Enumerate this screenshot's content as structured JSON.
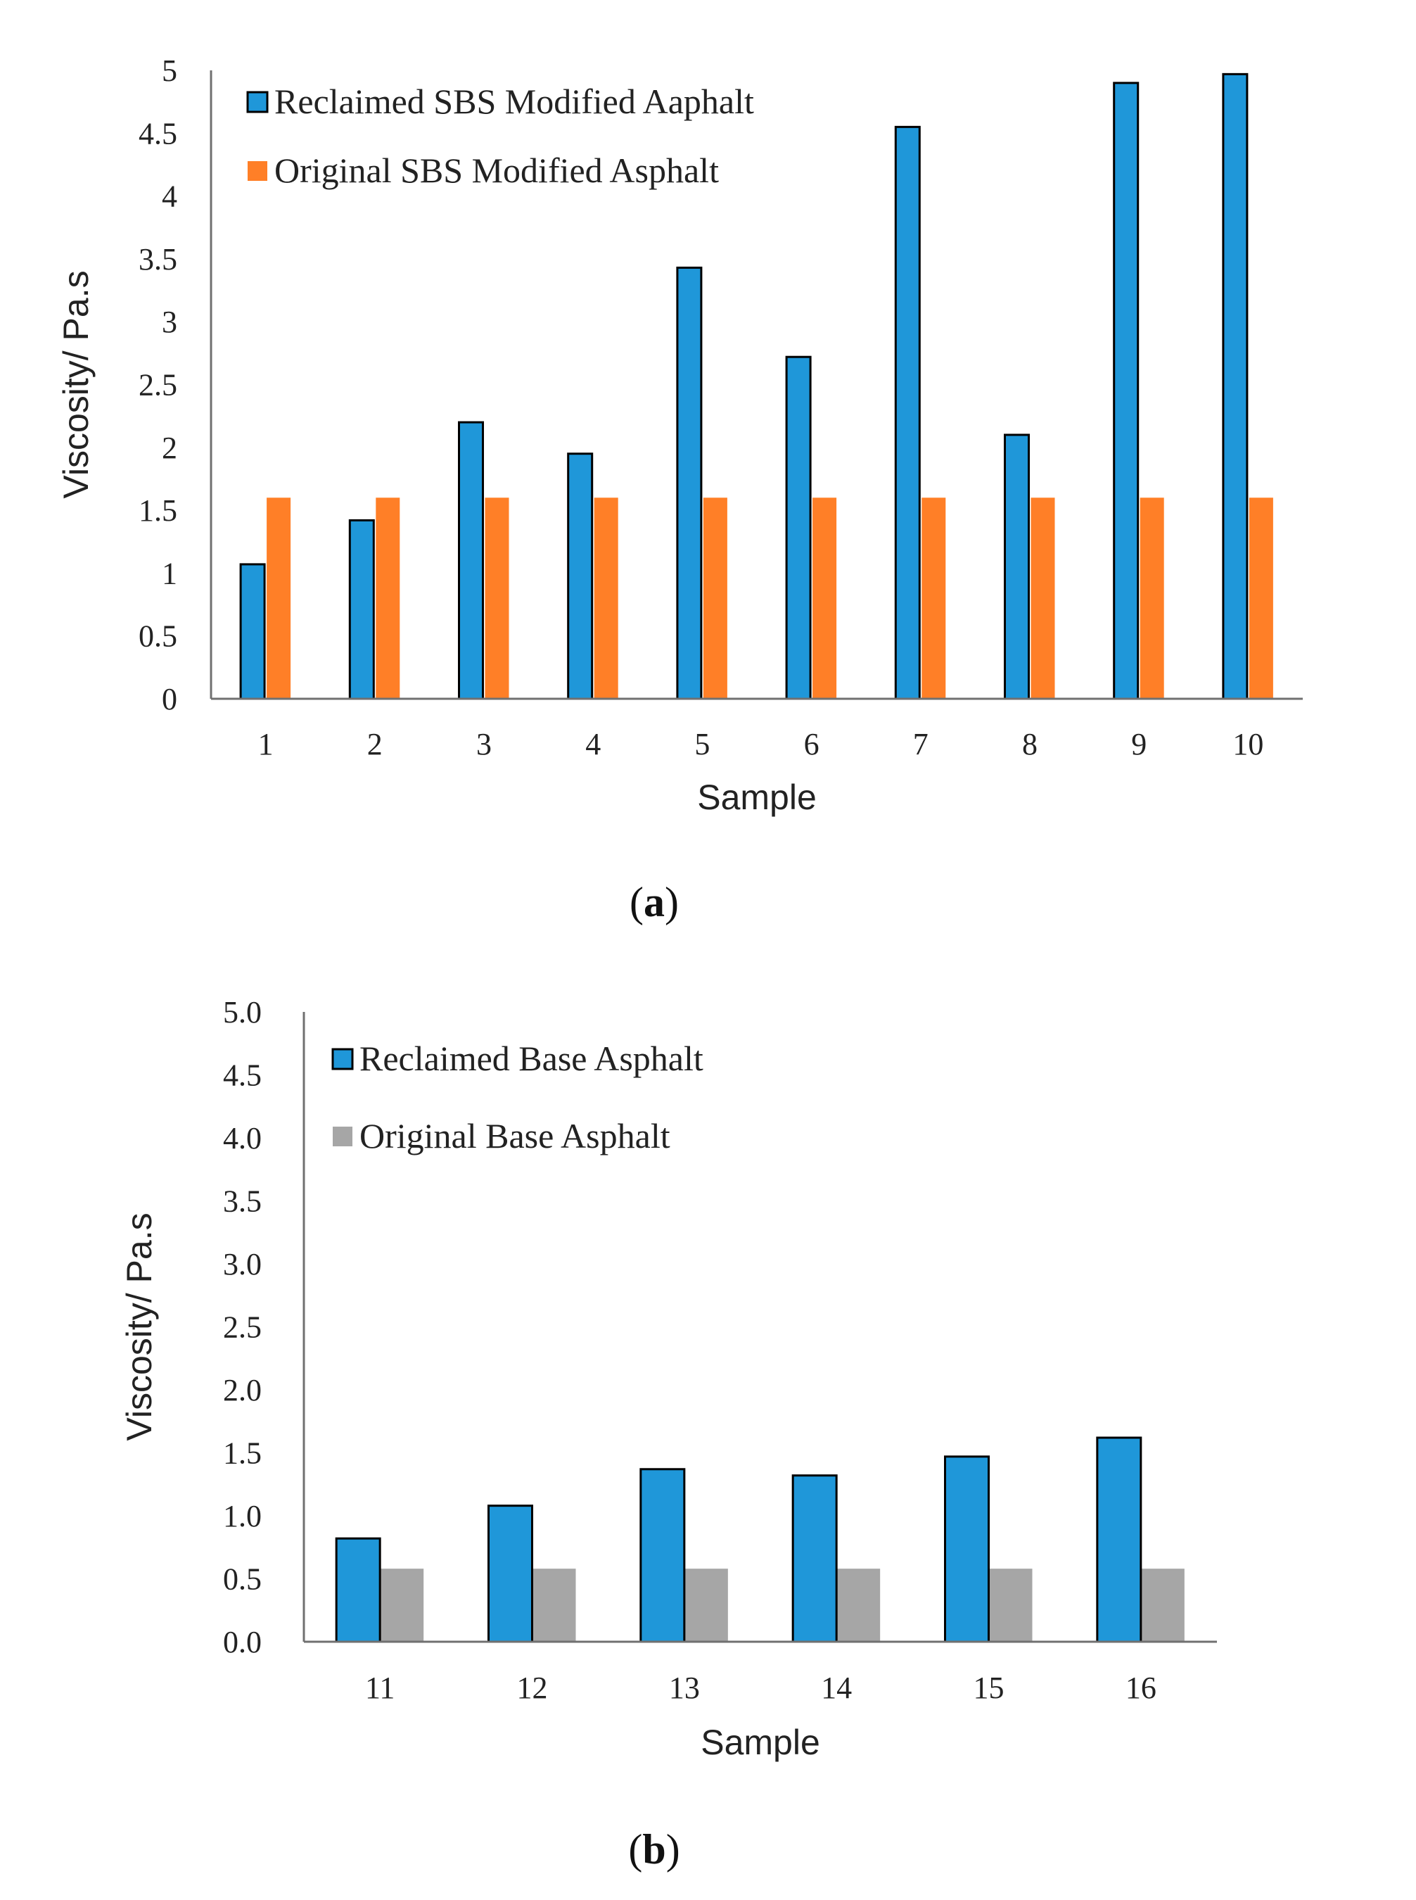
{
  "colors": {
    "reclaimed": "#1f97d9",
    "original_sbs": "#ff7f27",
    "original_base": "#a6a6a6",
    "axis": "#707070"
  },
  "chart_data": [
    {
      "type": "bar",
      "panel_label": "a",
      "xlabel": "Sample",
      "ylabel": "Viscosity/ Pa.s",
      "ylim": [
        0,
        5
      ],
      "y_ticks": [
        "0",
        "0.5",
        "1",
        "1.5",
        "2",
        "2.5",
        "3",
        "3.5",
        "4",
        "4.5",
        "5"
      ],
      "categories": [
        "1",
        "2",
        "3",
        "4",
        "5",
        "6",
        "7",
        "8",
        "9",
        "10"
      ],
      "legend_position": "top-left",
      "series": [
        {
          "name": "Reclaimed SBS Modified Aaphalt",
          "color": "#1f97d9",
          "outlined": true,
          "values": [
            1.07,
            1.42,
            2.2,
            1.95,
            3.43,
            2.72,
            4.55,
            2.1,
            4.9,
            4.97
          ]
        },
        {
          "name": "Original SBS Modified Asphalt",
          "color": "#ff7f27",
          "outlined": false,
          "values": [
            1.6,
            1.6,
            1.6,
            1.6,
            1.6,
            1.6,
            1.6,
            1.6,
            1.6,
            1.6
          ]
        }
      ]
    },
    {
      "type": "bar",
      "panel_label": "b",
      "xlabel": "Sample",
      "ylabel": "Viscosity/ Pa.s",
      "ylim": [
        0,
        5
      ],
      "y_ticks": [
        "0.0",
        "0.5",
        "1.0",
        "1.5",
        "2.0",
        "2.5",
        "3.0",
        "3.5",
        "4.0",
        "4.5",
        "5.0"
      ],
      "categories": [
        "11",
        "12",
        "13",
        "14",
        "15",
        "16"
      ],
      "legend_position": "top-left",
      "series": [
        {
          "name": "Reclaimed Base Asphalt",
          "color": "#1f97d9",
          "outlined": true,
          "values": [
            0.82,
            1.08,
            1.37,
            1.32,
            1.47,
            1.62
          ]
        },
        {
          "name": "Original Base Asphalt",
          "color": "#a6a6a6",
          "outlined": false,
          "values": [
            0.58,
            0.58,
            0.58,
            0.58,
            0.58,
            0.58
          ]
        }
      ]
    }
  ]
}
